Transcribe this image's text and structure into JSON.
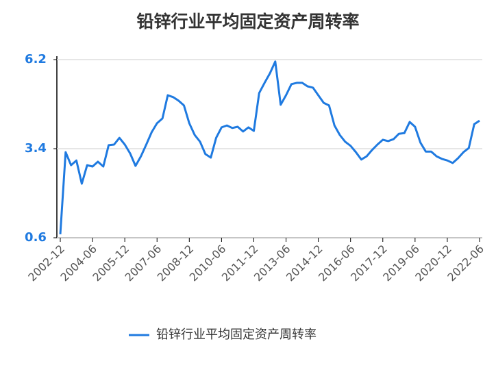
{
  "chart_data": {
    "type": "line",
    "title": "铅锌行业平均固定资产周转率",
    "categories": [
      "2002-12",
      null,
      null,
      null,
      null,
      null,
      "2004-06",
      null,
      null,
      null,
      null,
      null,
      "2005-12",
      null,
      null,
      null,
      null,
      null,
      "2007-06",
      null,
      null,
      null,
      null,
      null,
      "2008-12",
      null,
      null,
      null,
      null,
      null,
      "2010-06",
      null,
      null,
      null,
      null,
      null,
      "2011-12",
      null,
      null,
      null,
      null,
      null,
      "2013-06",
      null,
      null,
      null,
      null,
      null,
      "2014-12",
      null,
      null,
      null,
      null,
      null,
      "2016-06",
      null,
      null,
      null,
      null,
      null,
      "2017-12",
      null,
      null,
      null,
      null,
      null,
      "2019-06",
      null,
      null,
      null,
      null,
      null,
      "2020-12",
      null,
      null,
      null,
      null,
      null,
      "2022-06"
    ],
    "series": [
      {
        "name": "铅锌行业平均固定资产周转率",
        "color": "#1f7ae0",
        "values": [
          0.71,
          3.29,
          2.88,
          3.03,
          2.3,
          2.88,
          2.84,
          2.99,
          2.84,
          3.51,
          3.53,
          3.74,
          3.53,
          3.25,
          2.86,
          3.16,
          3.53,
          3.92,
          4.2,
          4.35,
          5.08,
          5.02,
          4.91,
          4.76,
          4.2,
          3.83,
          3.62,
          3.23,
          3.12,
          3.74,
          4.07,
          4.13,
          4.05,
          4.09,
          3.94,
          4.07,
          3.96,
          5.15,
          5.47,
          5.77,
          6.14,
          4.78,
          5.08,
          5.43,
          5.47,
          5.47,
          5.36,
          5.32,
          5.08,
          4.84,
          4.76,
          4.13,
          3.83,
          3.62,
          3.49,
          3.29,
          3.06,
          3.16,
          3.36,
          3.53,
          3.68,
          3.64,
          3.7,
          3.87,
          3.89,
          4.24,
          4.09,
          3.59,
          3.31,
          3.31,
          3.16,
          3.08,
          3.03,
          2.95,
          3.1,
          3.29,
          3.42,
          4.17,
          4.28
        ]
      }
    ],
    "ylim": [
      0.6,
      6.2
    ],
    "yticks": [
      0.6,
      3.4,
      6.2
    ],
    "grid": true,
    "legend": "bottom"
  }
}
